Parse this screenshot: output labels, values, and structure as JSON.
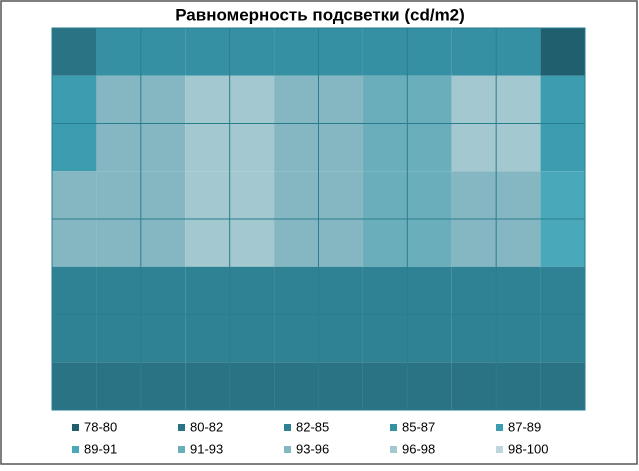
{
  "chart_data": {
    "type": "contour",
    "title": "Равномерность подсветки (cd/m2)",
    "values": [
      [
        81,
        86,
        87,
        87,
        86,
        86,
        80
      ],
      [
        88,
        95,
        97,
        96,
        92,
        97,
        88
      ],
      [
        94,
        96,
        97,
        95,
        92,
        94,
        91
      ],
      [
        83,
        84,
        84,
        83,
        84,
        84,
        84
      ],
      [
        81,
        81,
        81,
        81,
        81,
        81,
        81
      ]
    ],
    "series": [
      {
        "name": "78-80",
        "color": "#1f5f6e"
      },
      {
        "name": "80-82",
        "color": "#2a7385"
      },
      {
        "name": "82-85",
        "color": "#2f8294"
      },
      {
        "name": "85-87",
        "color": "#3690a3"
      },
      {
        "name": "87-89",
        "color": "#3c9db0"
      },
      {
        "name": "89-91",
        "color": "#4aa8bb"
      },
      {
        "name": "91-93",
        "color": "#6aaebb"
      },
      {
        "name": "93-96",
        "color": "#85b7c2"
      },
      {
        "name": "96-98",
        "color": "#a3c8cf"
      },
      {
        "name": "98-100",
        "color": "#bcd8dd"
      }
    ]
  }
}
